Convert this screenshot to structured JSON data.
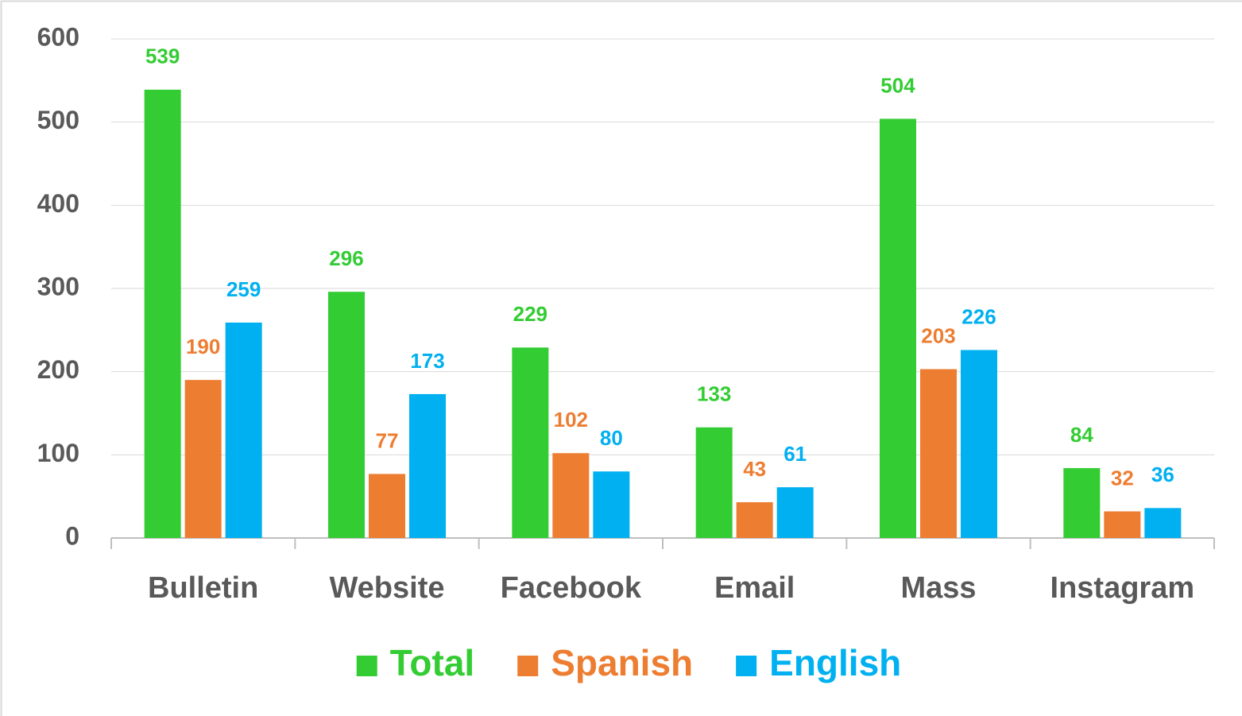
{
  "chart_data": {
    "type": "bar",
    "categories": [
      "Bulletin",
      "Website",
      "Facebook",
      "Email",
      "Mass",
      "Instagram"
    ],
    "series": [
      {
        "name": "Total",
        "color": "#33cc33",
        "values": [
          539,
          296,
          229,
          133,
          504,
          84
        ]
      },
      {
        "name": "Spanish",
        "color": "#ed7d31",
        "values": [
          190,
          77,
          102,
          43,
          203,
          32
        ]
      },
      {
        "name": "English",
        "color": "#00b0f0",
        "values": [
          259,
          173,
          80,
          61,
          226,
          36
        ]
      }
    ],
    "ylim": [
      0,
      600
    ],
    "yticks": [
      0,
      100,
      200,
      300,
      400,
      500,
      600
    ],
    "grid": true,
    "legend": "bottom"
  }
}
